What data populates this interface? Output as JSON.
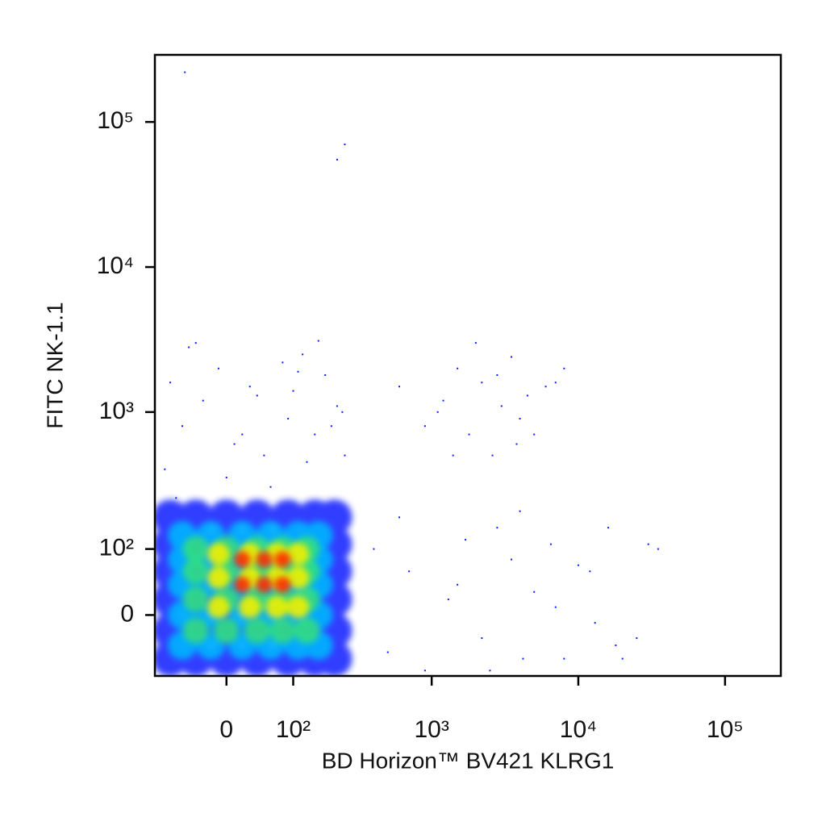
{
  "chart_data": {
    "type": "scatter",
    "scale": "biexponential",
    "x_label": "BD Horizon™ BV421 KLRG1",
    "y_label": "FITC NK-1.1",
    "xlim": [
      -110,
      240000
    ],
    "ylim": [
      -90,
      290000
    ],
    "xticks": [
      0,
      {
        "value": 100,
        "label": "10²"
      },
      {
        "value": 1000,
        "label": "10³"
      },
      {
        "value": 10000,
        "label": "10⁴"
      },
      {
        "value": 100000,
        "label": "10⁵"
      }
    ],
    "yticks": [
      0,
      {
        "value": 100,
        "label": "10²"
      },
      {
        "value": 1000,
        "label": "10³"
      },
      {
        "value": 10000,
        "label": "10⁴"
      },
      {
        "value": 100000,
        "label": "10⁵"
      }
    ],
    "series": [
      {
        "color": "#1a2cff",
        "marker_size": 22,
        "x": [
          -80,
          -40,
          0,
          40,
          90,
          150,
          210,
          -80,
          -40,
          0,
          40,
          90,
          150,
          210,
          -80,
          -40,
          0,
          40,
          90,
          150,
          210,
          -80,
          -40,
          0,
          40,
          90,
          150,
          210,
          -80,
          -40,
          0,
          40,
          90,
          150,
          210,
          -80,
          -40,
          0,
          40,
          90,
          150,
          210
        ],
        "y": [
          -60,
          -60,
          -60,
          -60,
          -60,
          -60,
          -60,
          -20,
          -20,
          -20,
          -20,
          -20,
          -20,
          -20,
          20,
          20,
          20,
          20,
          20,
          20,
          20,
          60,
          60,
          60,
          60,
          60,
          60,
          60,
          110,
          110,
          110,
          110,
          110,
          110,
          110,
          180,
          180,
          180,
          180,
          180,
          180,
          180
        ]
      },
      {
        "color": "#00b4ff",
        "marker_size": 18,
        "x": [
          -60,
          -20,
          20,
          60,
          110,
          160,
          -60,
          -20,
          20,
          60,
          110,
          160,
          -60,
          -20,
          20,
          60,
          110,
          160,
          -60,
          -20,
          20,
          60,
          110,
          160,
          -60,
          -20,
          20,
          60,
          110,
          160
        ],
        "y": [
          -40,
          -40,
          -40,
          -40,
          -40,
          -40,
          0,
          0,
          0,
          0,
          0,
          0,
          40,
          40,
          40,
          40,
          40,
          40,
          80,
          80,
          80,
          80,
          80,
          80,
          130,
          130,
          130,
          130,
          130,
          130
        ]
      },
      {
        "color": "#30e080",
        "marker_size": 16,
        "x": [
          -40,
          0,
          40,
          80,
          130,
          -40,
          0,
          40,
          80,
          130,
          -40,
          0,
          40,
          80,
          130,
          -40,
          0,
          40,
          80,
          130
        ],
        "y": [
          -20,
          -20,
          -20,
          -20,
          -20,
          20,
          20,
          20,
          20,
          20,
          60,
          60,
          60,
          60,
          60,
          100,
          100,
          100,
          100,
          100
        ]
      },
      {
        "color": "#f0f000",
        "marker_size": 14,
        "x": [
          -10,
          30,
          70,
          110,
          -10,
          30,
          70,
          110,
          -10,
          30,
          70,
          110
        ],
        "y": [
          10,
          10,
          10,
          10,
          50,
          50,
          50,
          50,
          90,
          90,
          90,
          90
        ]
      },
      {
        "color": "#ff2a00",
        "marker_size": 10,
        "x": [
          20,
          50,
          80,
          20,
          50,
          80
        ],
        "y": [
          40,
          40,
          40,
          80,
          80,
          80
        ]
      },
      {
        "color": "#0a1eff",
        "marker_size": 2,
        "x": [
          -90,
          -60,
          -30,
          -10,
          10,
          30,
          60,
          90,
          120,
          150,
          180,
          220,
          250,
          -80,
          -40,
          0,
          40,
          80,
          130,
          200,
          -70,
          20,
          100,
          160,
          240,
          -50,
          50,
          110,
          600,
          900,
          1200,
          1500,
          1800,
          2200,
          2600,
          3000,
          3500,
          4000,
          4500,
          5000,
          6000,
          7000,
          8000,
          1100,
          2000,
          2800,
          3800,
          1400,
          400,
          500,
          700,
          900,
          1300,
          1700,
          2200,
          2800,
          3500,
          4200,
          5000,
          6500,
          8000,
          10000,
          13000,
          16000,
          20000,
          25000,
          30000,
          35000,
          600,
          1500,
          2500,
          4000,
          7000,
          12000,
          18000,
          -56,
          220,
          250
        ],
        "y": [
          400,
          800,
          1200,
          2000,
          600,
          1500,
          300,
          900,
          2500,
          700,
          1800,
          1100,
          500,
          1600,
          3000,
          350,
          1300,
          2200,
          450,
          800,
          250,
          700,
          1400,
          3100,
          1000,
          2800,
          500,
          1900,
          1500,
          800,
          1200,
          2000,
          700,
          1600,
          500,
          1100,
          2400,
          900,
          1300,
          700,
          1500,
          1600,
          2000,
          1000,
          3000,
          1800,
          600,
          500,
          100,
          -50,
          60,
          -80,
          20,
          120,
          -30,
          150,
          80,
          -60,
          30,
          110,
          -60,
          70,
          -10,
          150,
          -60,
          -30,
          110,
          100,
          180,
          40,
          -80,
          200,
          10,
          60,
          -40,
          220000,
          55000,
          70000
        ]
      }
    ]
  }
}
